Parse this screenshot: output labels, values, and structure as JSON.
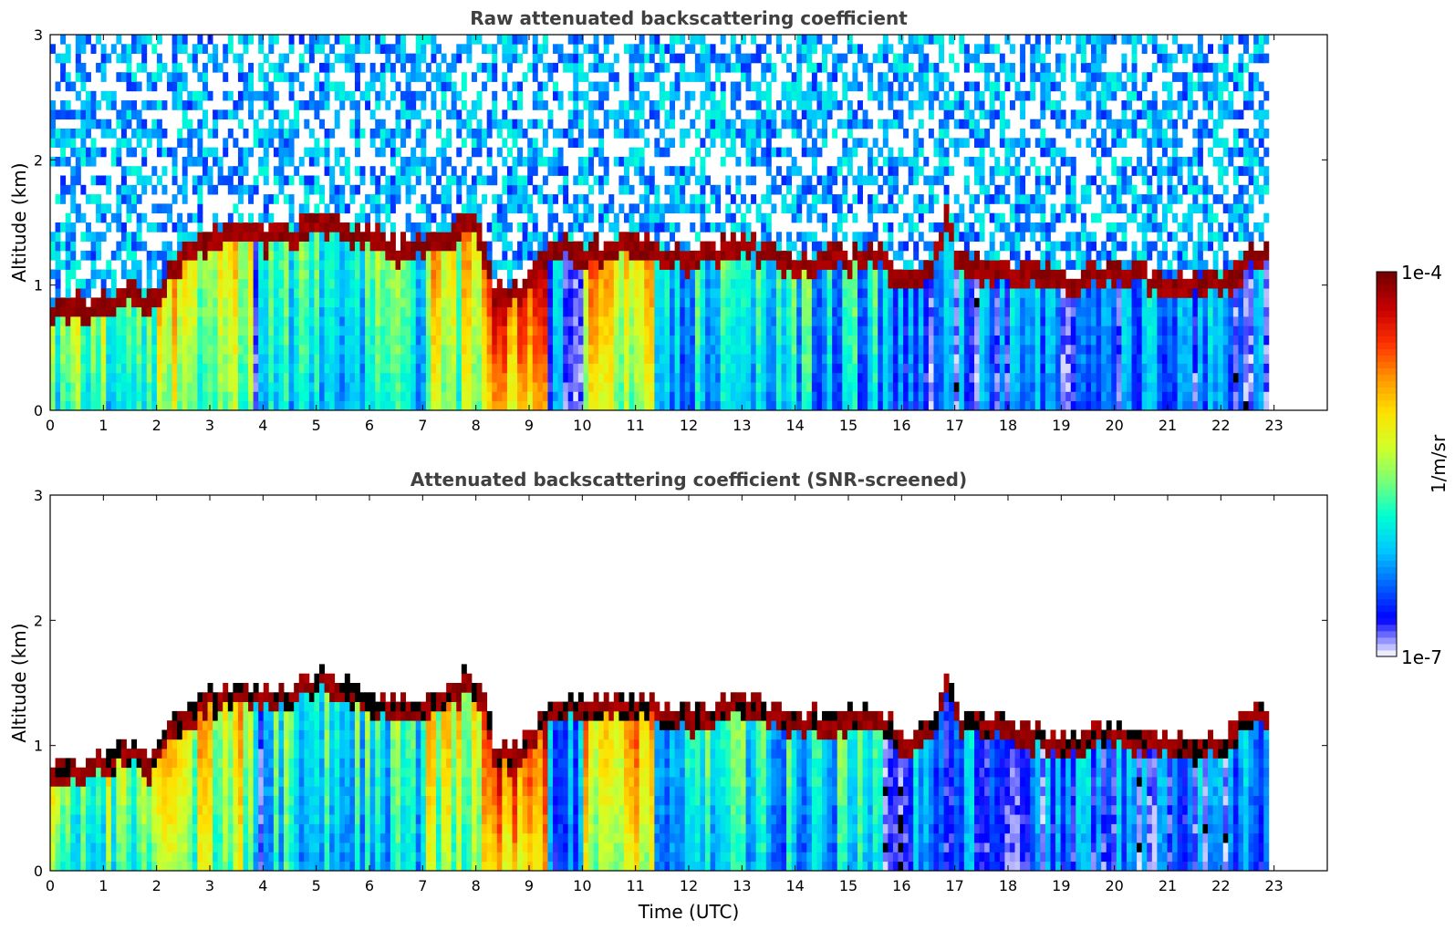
{
  "chart_data": [
    {
      "type": "heatmap",
      "title": "Raw attenuated backscattering coefficient",
      "xlabel": "",
      "ylabel": "Altitude (km)",
      "xlim": [
        0,
        24
      ],
      "ylim": [
        0,
        3
      ],
      "x_ticks": [
        0,
        1,
        2,
        3,
        4,
        5,
        6,
        7,
        8,
        9,
        10,
        11,
        12,
        13,
        14,
        15,
        16,
        17,
        18,
        19,
        20,
        21,
        22,
        23
      ],
      "y_ticks": [
        0,
        1,
        2,
        3
      ],
      "data_end_time": 22.9,
      "noise_above_layer": true,
      "layer_top_km": {
        "times": [
          0,
          0.5,
          1,
          1.5,
          1.8,
          2,
          2.3,
          2.7,
          3,
          3.5,
          4,
          4.5,
          5,
          5.5,
          6,
          6.5,
          7,
          7.5,
          7.8,
          8,
          8.3,
          8.6,
          9,
          9.3,
          9.6,
          10,
          10.5,
          11,
          11.5,
          12,
          12.5,
          13,
          13.5,
          14,
          14.5,
          15,
          15.5,
          16,
          16.5,
          16.8,
          17,
          17.5,
          18,
          18.5,
          19,
          19.5,
          20,
          20.5,
          21,
          21.5,
          22,
          22.5,
          22.9
        ],
        "values": [
          0.75,
          0.8,
          0.85,
          0.95,
          0.85,
          0.9,
          1.2,
          1.3,
          1.35,
          1.4,
          1.35,
          1.4,
          1.5,
          1.45,
          1.35,
          1.25,
          1.3,
          1.4,
          1.5,
          1.45,
          0.95,
          0.9,
          1.0,
          1.3,
          1.3,
          1.25,
          1.3,
          1.3,
          1.25,
          1.2,
          1.25,
          1.3,
          1.25,
          1.15,
          1.2,
          1.2,
          1.25,
          1.0,
          1.1,
          1.5,
          1.2,
          1.15,
          1.1,
          1.05,
          1.0,
          1.05,
          1.1,
          1.05,
          1.0,
          1.0,
          1.0,
          1.2,
          1.25
        ]
      },
      "colorscale": [
        "#ececff",
        "#0000ff",
        "#0064ff",
        "#00c8ff",
        "#00ffd2",
        "#78ff78",
        "#d2ff28",
        "#ffe100",
        "#ff9600",
        "#ff3200",
        "#c80000",
        "#780000"
      ]
    },
    {
      "type": "heatmap",
      "title": "Attenuated backscattering coefficient (SNR-screened)",
      "xlabel": "Time (UTC)",
      "ylabel": "Altitude (km)",
      "xlim": [
        0,
        24
      ],
      "ylim": [
        0,
        3
      ],
      "x_ticks": [
        0,
        1,
        2,
        3,
        4,
        5,
        6,
        7,
        8,
        9,
        10,
        11,
        12,
        13,
        14,
        15,
        16,
        17,
        18,
        19,
        20,
        21,
        22,
        23
      ],
      "y_ticks": [
        0,
        1,
        2,
        3
      ],
      "data_end_time": 22.9,
      "noise_above_layer": false
    }
  ],
  "colorbar": {
    "max_label": "1e-4",
    "min_label": "1e-7",
    "unit_label": "1/m/sr"
  }
}
